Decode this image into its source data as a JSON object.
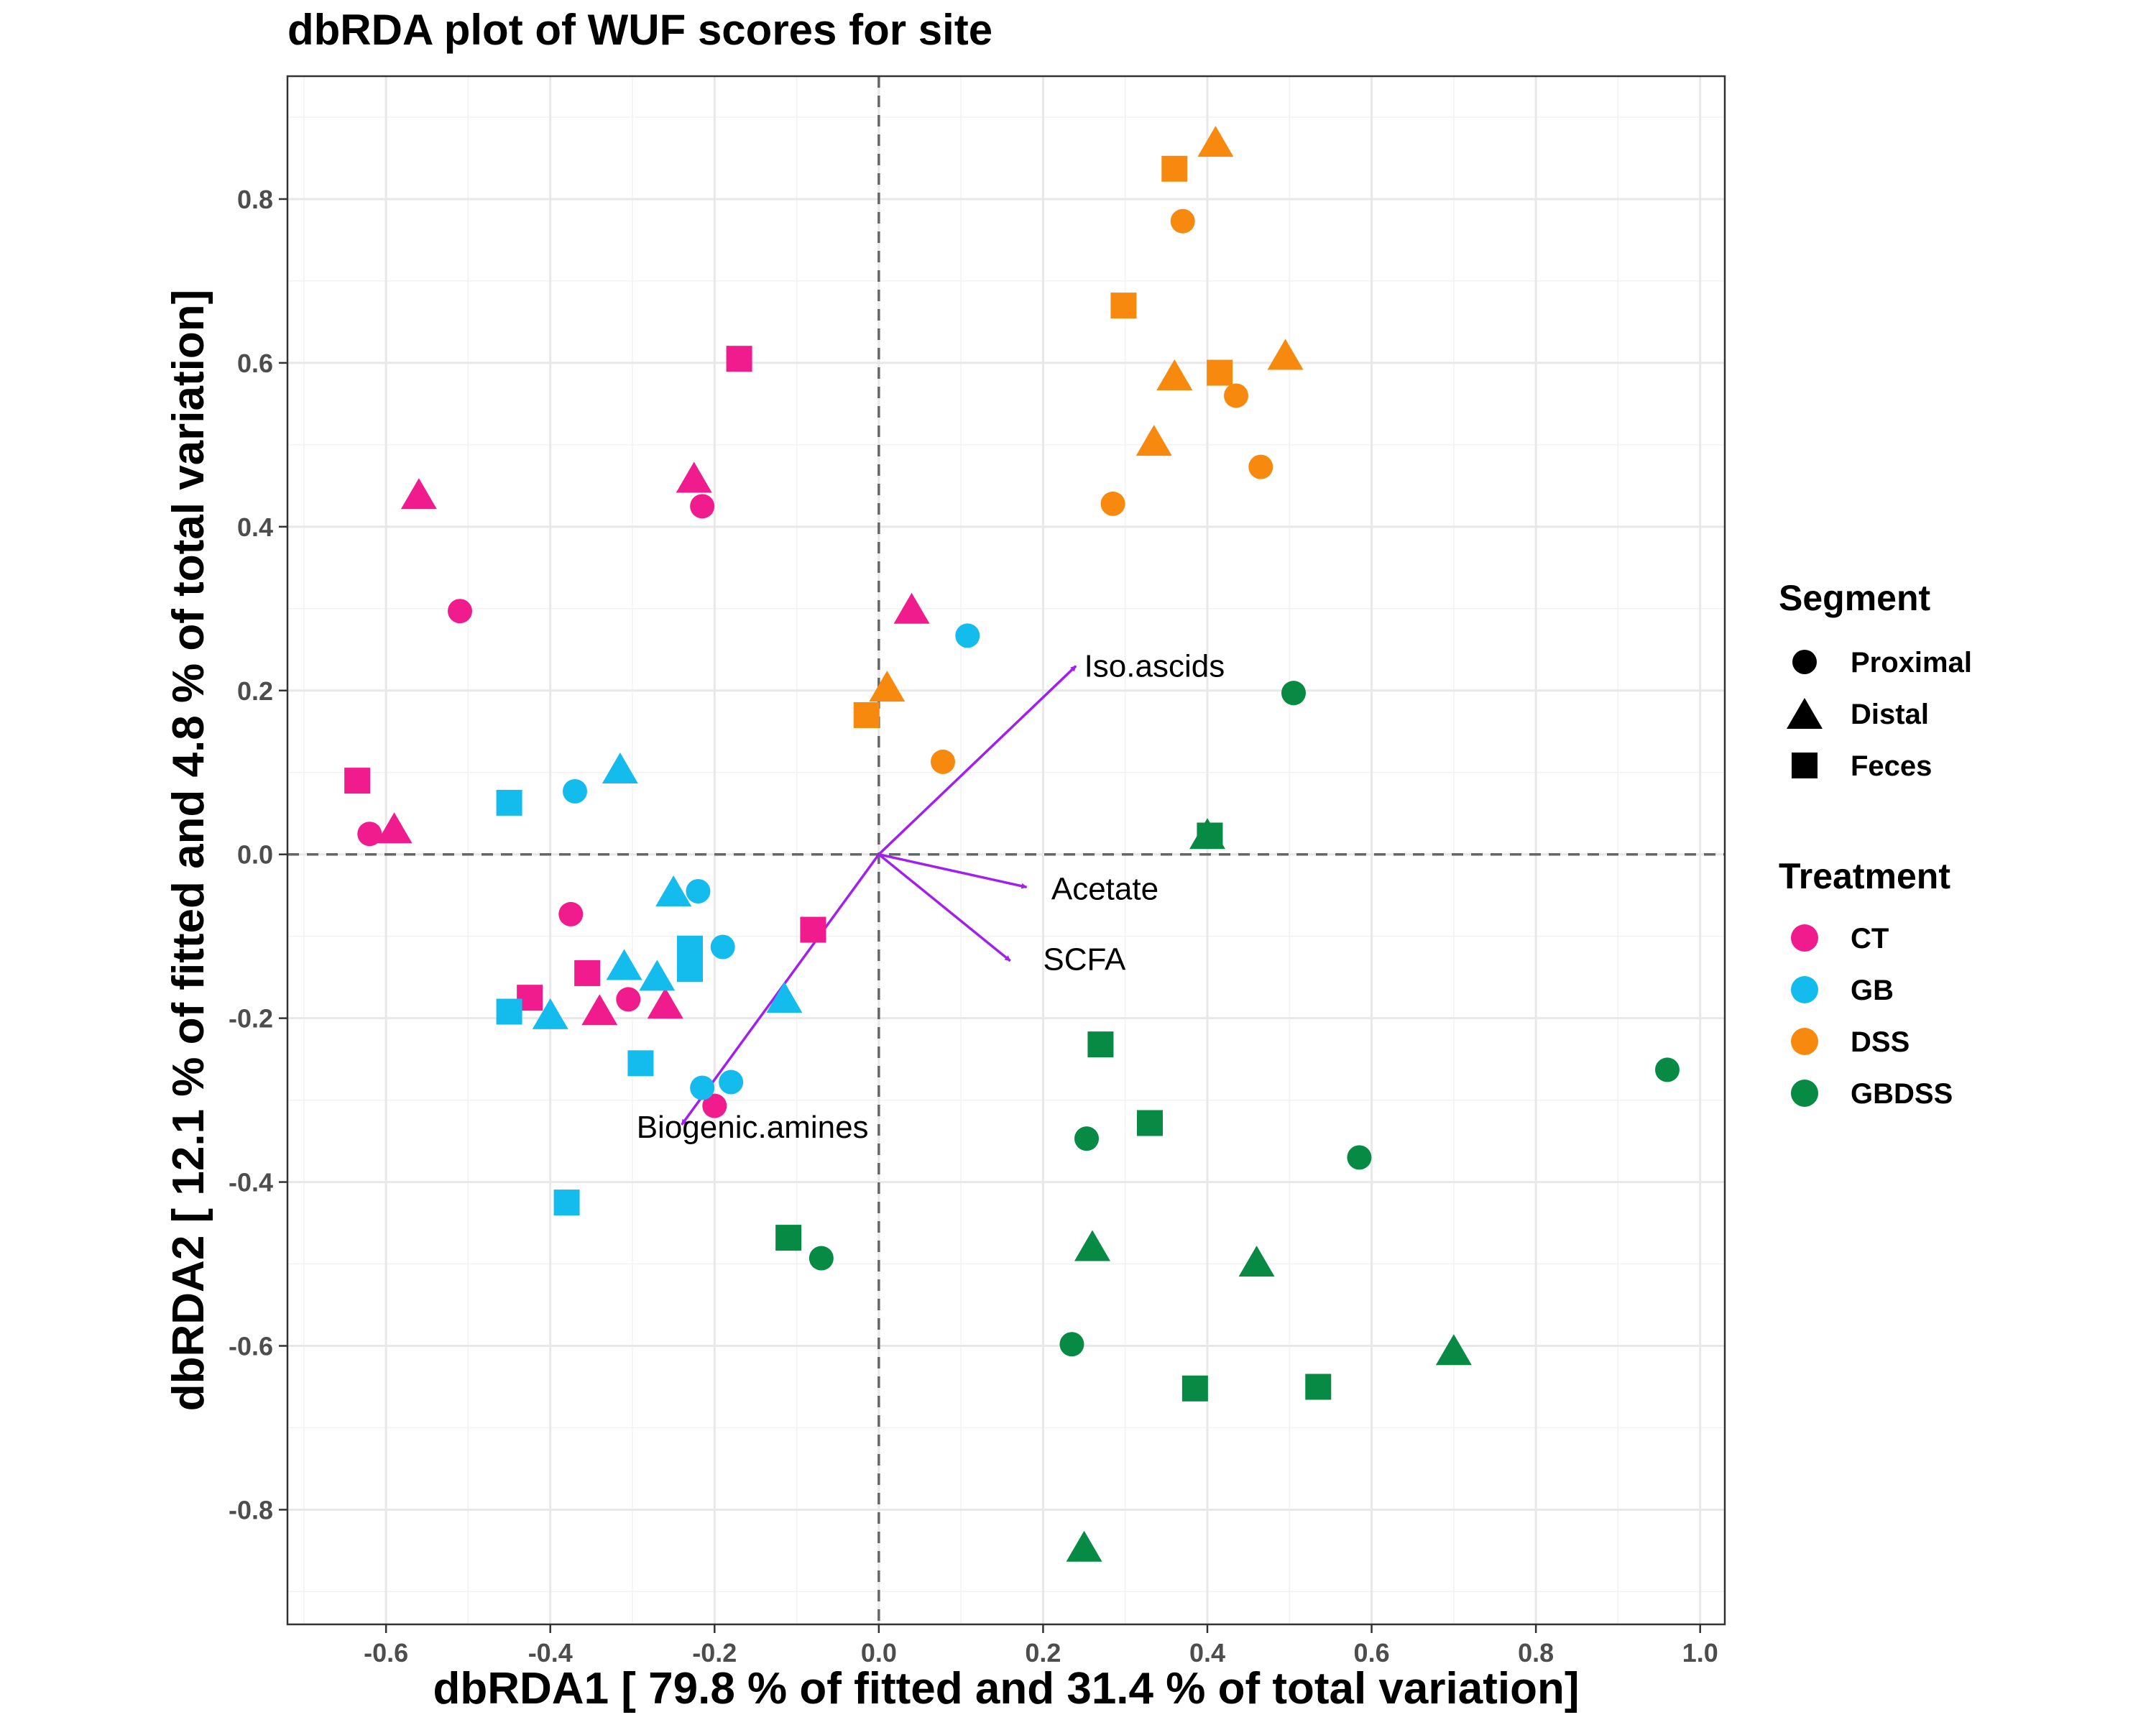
{
  "chart_data": {
    "type": "scatter",
    "title": "dbRDA plot of WUF scores for site",
    "xlabel": "dbRDA1 [ 79.8 % of fitted and 31.4 % of total variation]",
    "ylabel": "dbRDA2 [ 12.1 % of fitted and 4.8 % of total variation]",
    "xlim": [
      -0.72,
      1.03
    ],
    "ylim": [
      -0.94,
      0.95
    ],
    "x_ticks": [
      -0.6,
      -0.4,
      -0.2,
      0.0,
      0.2,
      0.4,
      0.6,
      0.8,
      1.0
    ],
    "y_ticks": [
      0.8,
      0.6,
      0.4,
      0.2,
      0.0,
      -0.2,
      -0.4,
      -0.6,
      -0.8
    ],
    "x_tick_labels": [
      "-0.6",
      "-0.4",
      "-0.2",
      "0.0",
      "0.2",
      "0.4",
      "0.6",
      "0.8",
      "1.0"
    ],
    "y_tick_labels": [
      "0.8",
      "0.6",
      "0.4",
      "0.2",
      "0.0",
      "-0.2",
      "-0.4",
      "-0.6",
      "-0.8"
    ],
    "grid": true,
    "reference_lines": {
      "x": 0,
      "y": 0,
      "style": "dashed"
    },
    "legend_position": "right",
    "legends": [
      {
        "title": "Segment",
        "entries": [
          {
            "label": "Proximal",
            "shape": "circle"
          },
          {
            "label": "Distal",
            "shape": "triangle"
          },
          {
            "label": "Feces",
            "shape": "square"
          }
        ]
      },
      {
        "title": "Treatment",
        "entries": [
          {
            "label": "CT",
            "color": "#f01c8e"
          },
          {
            "label": "GB",
            "color": "#14bcee"
          },
          {
            "label": "DSS",
            "color": "#f78a0e"
          },
          {
            "label": "GBDSS",
            "color": "#068a44"
          }
        ]
      }
    ],
    "vectors": [
      {
        "label": "Iso.ascids",
        "x": 0.24,
        "y": 0.23,
        "label_x": 0.25,
        "label_y": 0.23
      },
      {
        "label": "Acetate",
        "x": 0.18,
        "y": -0.04,
        "label_x": 0.21,
        "label_y": -0.042
      },
      {
        "label": "SCFA",
        "x": 0.16,
        "y": -0.13,
        "label_x": 0.2,
        "label_y": -0.128
      },
      {
        "label": "Biogenic.amines",
        "x": -0.24,
        "y": -0.33,
        "label_x": -0.295,
        "label_y": -0.333
      }
    ],
    "vector_color": "#a020f0",
    "series": [
      {
        "treatment": "CT",
        "color": "#f01c8e",
        "points": [
          {
            "x": -0.62,
            "y": 0.025,
            "segment": "Proximal"
          },
          {
            "x": -0.51,
            "y": 0.297,
            "segment": "Proximal"
          },
          {
            "x": -0.215,
            "y": 0.425,
            "segment": "Proximal"
          },
          {
            "x": -0.375,
            "y": -0.073,
            "segment": "Proximal"
          },
          {
            "x": -0.305,
            "y": -0.177,
            "segment": "Proximal"
          },
          {
            "x": -0.2,
            "y": -0.307,
            "segment": "Proximal"
          },
          {
            "x": -0.56,
            "y": 0.44,
            "segment": "Distal"
          },
          {
            "x": -0.225,
            "y": 0.46,
            "segment": "Distal"
          },
          {
            "x": -0.59,
            "y": 0.032,
            "segment": "Distal"
          },
          {
            "x": 0.04,
            "y": 0.3,
            "segment": "Distal"
          },
          {
            "x": -0.34,
            "y": -0.19,
            "segment": "Distal"
          },
          {
            "x": -0.26,
            "y": -0.182,
            "segment": "Distal"
          },
          {
            "x": -0.17,
            "y": 0.605,
            "segment": "Feces"
          },
          {
            "x": -0.635,
            "y": 0.09,
            "segment": "Feces"
          },
          {
            "x": -0.08,
            "y": -0.092,
            "segment": "Feces"
          },
          {
            "x": -0.355,
            "y": -0.145,
            "segment": "Feces"
          },
          {
            "x": -0.425,
            "y": -0.175,
            "segment": "Feces"
          }
        ]
      },
      {
        "treatment": "GB",
        "color": "#14bcee",
        "points": [
          {
            "x": 0.108,
            "y": 0.267,
            "segment": "Proximal"
          },
          {
            "x": -0.37,
            "y": 0.077,
            "segment": "Proximal"
          },
          {
            "x": -0.22,
            "y": -0.045,
            "segment": "Proximal"
          },
          {
            "x": -0.19,
            "y": -0.113,
            "segment": "Proximal"
          },
          {
            "x": -0.215,
            "y": -0.285,
            "segment": "Proximal"
          },
          {
            "x": -0.18,
            "y": -0.278,
            "segment": "Proximal"
          },
          {
            "x": -0.315,
            "y": 0.105,
            "segment": "Distal"
          },
          {
            "x": -0.25,
            "y": -0.045,
            "segment": "Distal"
          },
          {
            "x": -0.31,
            "y": -0.135,
            "segment": "Distal"
          },
          {
            "x": -0.27,
            "y": -0.148,
            "segment": "Distal"
          },
          {
            "x": -0.4,
            "y": -0.195,
            "segment": "Distal"
          },
          {
            "x": -0.115,
            "y": -0.175,
            "segment": "Distal"
          },
          {
            "x": -0.45,
            "y": 0.063,
            "segment": "Feces"
          },
          {
            "x": -0.23,
            "y": -0.115,
            "segment": "Feces"
          },
          {
            "x": -0.23,
            "y": -0.14,
            "segment": "Feces"
          },
          {
            "x": -0.45,
            "y": -0.192,
            "segment": "Feces"
          },
          {
            "x": -0.29,
            "y": -0.255,
            "segment": "Feces"
          },
          {
            "x": -0.38,
            "y": -0.425,
            "segment": "Feces"
          }
        ]
      },
      {
        "treatment": "DSS",
        "color": "#f78a0e",
        "points": [
          {
            "x": 0.37,
            "y": 0.773,
            "segment": "Proximal"
          },
          {
            "x": 0.435,
            "y": 0.56,
            "segment": "Proximal"
          },
          {
            "x": 0.465,
            "y": 0.473,
            "segment": "Proximal"
          },
          {
            "x": 0.285,
            "y": 0.428,
            "segment": "Proximal"
          },
          {
            "x": 0.078,
            "y": 0.113,
            "segment": "Proximal"
          },
          {
            "x": 0.41,
            "y": 0.87,
            "segment": "Distal"
          },
          {
            "x": 0.36,
            "y": 0.585,
            "segment": "Distal"
          },
          {
            "x": 0.495,
            "y": 0.61,
            "segment": "Distal"
          },
          {
            "x": 0.335,
            "y": 0.505,
            "segment": "Distal"
          },
          {
            "x": 0.01,
            "y": 0.205,
            "segment": "Distal"
          },
          {
            "x": 0.36,
            "y": 0.837,
            "segment": "Feces"
          },
          {
            "x": 0.298,
            "y": 0.67,
            "segment": "Feces"
          },
          {
            "x": 0.415,
            "y": 0.588,
            "segment": "Feces"
          },
          {
            "x": -0.015,
            "y": 0.17,
            "segment": "Feces"
          }
        ]
      },
      {
        "treatment": "GBDSS",
        "color": "#068a44",
        "points": [
          {
            "x": 0.505,
            "y": 0.197,
            "segment": "Proximal"
          },
          {
            "x": 0.96,
            "y": -0.263,
            "segment": "Proximal"
          },
          {
            "x": 0.253,
            "y": -0.347,
            "segment": "Proximal"
          },
          {
            "x": 0.585,
            "y": -0.37,
            "segment": "Proximal"
          },
          {
            "x": -0.07,
            "y": -0.493,
            "segment": "Proximal"
          },
          {
            "x": 0.235,
            "y": -0.598,
            "segment": "Proximal"
          },
          {
            "x": 0.4,
            "y": 0.025,
            "segment": "Distal"
          },
          {
            "x": 0.26,
            "y": -0.478,
            "segment": "Distal"
          },
          {
            "x": 0.46,
            "y": -0.497,
            "segment": "Distal"
          },
          {
            "x": 0.7,
            "y": -0.605,
            "segment": "Distal"
          },
          {
            "x": 0.25,
            "y": -0.845,
            "segment": "Distal"
          },
          {
            "x": 0.403,
            "y": 0.023,
            "segment": "Feces"
          },
          {
            "x": 0.27,
            "y": -0.232,
            "segment": "Feces"
          },
          {
            "x": 0.33,
            "y": -0.328,
            "segment": "Feces"
          },
          {
            "x": -0.11,
            "y": -0.468,
            "segment": "Feces"
          },
          {
            "x": 0.385,
            "y": -0.652,
            "segment": "Feces"
          },
          {
            "x": 0.535,
            "y": -0.65,
            "segment": "Feces"
          }
        ]
      }
    ]
  }
}
